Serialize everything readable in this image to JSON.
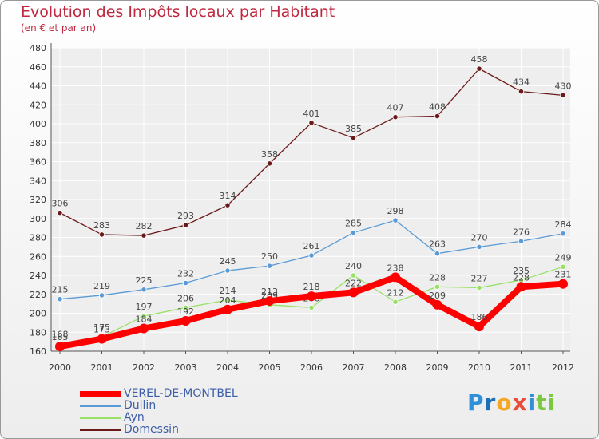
{
  "chart_data": {
    "type": "line",
    "title": "Evolution des Impôts locaux par Habitant",
    "subtitle": "(en € et par an)",
    "xlabel": "",
    "ylabel": "",
    "ylim": [
      160,
      480
    ],
    "yticks": [
      160,
      180,
      200,
      220,
      240,
      260,
      280,
      300,
      320,
      340,
      360,
      380,
      400,
      420,
      440,
      460,
      480
    ],
    "grid": true,
    "legend_position": "bottom-left",
    "x": [
      "2000",
      "2001",
      "2002",
      "2003",
      "2004",
      "2005",
      "2006",
      "2007",
      "2008",
      "2009",
      "2010",
      "2011",
      "2012"
    ],
    "series": [
      {
        "name": "VEREL-DE-MONTBEL",
        "color": "#ff0000",
        "values": [
          165,
          173,
          184,
          192,
          204,
          213,
          218,
          222,
          238,
          209,
          186,
          228,
          231
        ]
      },
      {
        "name": "Dullin",
        "color": "#5b9bd5",
        "values": [
          215,
          219,
          225,
          232,
          245,
          250,
          261,
          285,
          298,
          263,
          270,
          276,
          284
        ]
      },
      {
        "name": "Ayn",
        "color": "#99e066",
        "values": [
          168,
          175,
          197,
          206,
          214,
          209,
          206,
          240,
          212,
          228,
          227,
          235,
          249
        ]
      },
      {
        "name": "Domessin",
        "color": "#6b1a1a",
        "values": [
          306,
          283,
          282,
          293,
          314,
          358,
          401,
          385,
          407,
          408,
          458,
          434,
          430
        ]
      }
    ]
  },
  "logo": {
    "letters": [
      "P",
      "r",
      "o",
      "x",
      "i",
      "t",
      "i"
    ],
    "colors": [
      "#2f8fd8",
      "#1d6fb8",
      "#f5a623",
      "#e84c3d",
      "#2f8fd8",
      "#7ac943",
      "#7ac943"
    ]
  }
}
